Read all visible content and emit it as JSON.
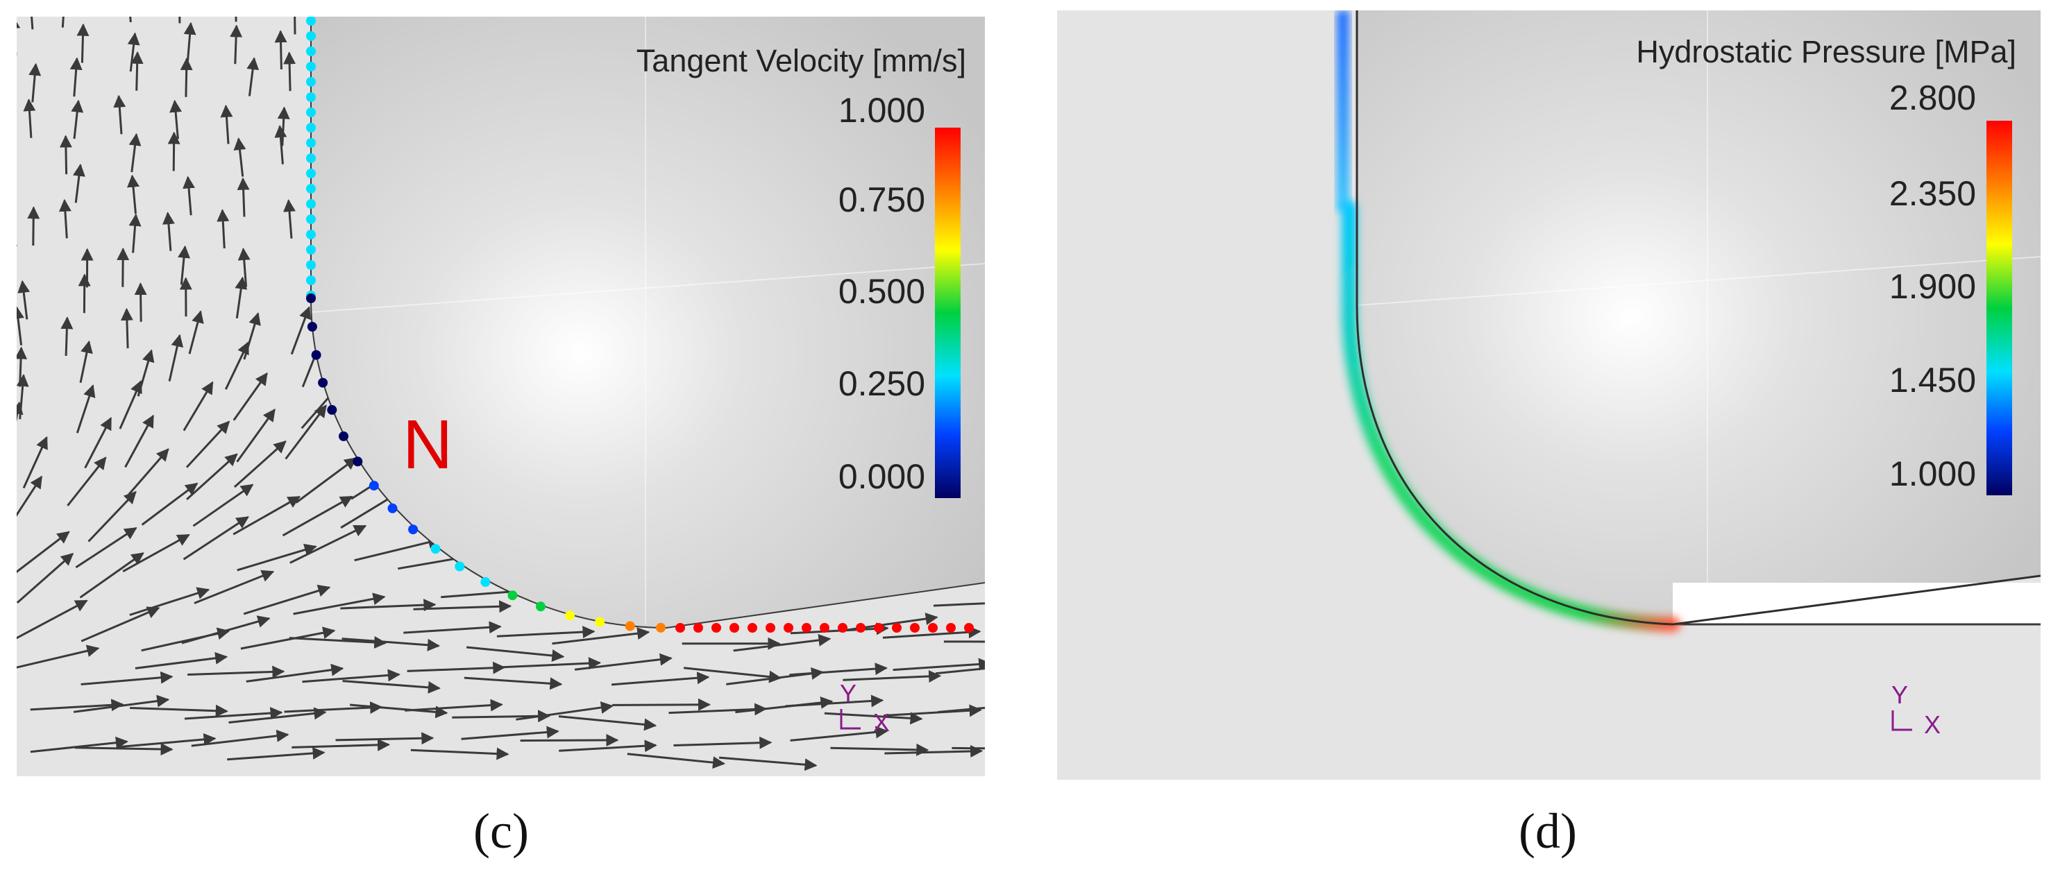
{
  "panels": [
    {
      "id": "c",
      "caption": "(c)",
      "legend_title": "Tangent Velocity [mm/s]",
      "ticks": [
        "1.000",
        "0.750",
        "0.500",
        "0.250",
        "0.000"
      ],
      "annotation": "N",
      "axis": {
        "y": "Y",
        "x": "X"
      }
    },
    {
      "id": "d",
      "caption": "(d)",
      "legend_title": "Hydrostatic Pressure [MPa]",
      "ticks": [
        "2.800",
        "2.350",
        "1.900",
        "1.450",
        "1.000"
      ],
      "axis": {
        "y": "Y",
        "x": "X"
      }
    }
  ],
  "colors": {
    "background": "#e4e4e4",
    "tool": "#d2d2d2",
    "arrow": "#3a3a3a",
    "annotation": "#e00000",
    "axis": "#8b1a8b",
    "colormap": [
      "#ff0000",
      "#ff8000",
      "#ffff00",
      "#00d040",
      "#00e0ff",
      "#0040ff",
      "#000060"
    ]
  }
}
